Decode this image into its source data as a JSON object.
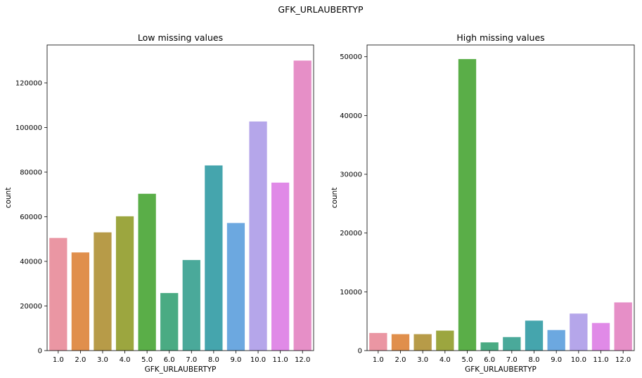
{
  "figure": {
    "suptitle": "GFK_URLAUBERTYP"
  },
  "chart_data": [
    {
      "type": "bar",
      "title": "Low missing values",
      "xlabel": "GFK_URLAUBERTYP",
      "ylabel": "count",
      "ylim": [
        0,
        137000
      ],
      "yticks": [
        0,
        20000,
        40000,
        60000,
        80000,
        100000,
        120000
      ],
      "categories": [
        "1.0",
        "2.0",
        "3.0",
        "4.0",
        "5.0",
        "6.0",
        "7.0",
        "8.0",
        "9.0",
        "10.0",
        "11.0",
        "12.0"
      ],
      "values": [
        50500,
        44000,
        53000,
        60200,
        70300,
        25800,
        40600,
        83000,
        57200,
        102700,
        75300,
        130000
      ],
      "colors": [
        "#ea96a3",
        "#e08f4c",
        "#b79b48",
        "#9ca63f",
        "#5aae48",
        "#4aab83",
        "#4aa99a",
        "#45a5ad",
        "#6ca8e0",
        "#b5a6ea",
        "#e08ae7",
        "#e68fc7"
      ]
    },
    {
      "type": "bar",
      "title": "High missing values",
      "xlabel": "GFK_URLAUBERTYP",
      "ylabel": "count",
      "ylim": [
        0,
        52000
      ],
      "yticks": [
        0,
        10000,
        20000,
        30000,
        40000,
        50000
      ],
      "categories": [
        "1.0",
        "2.0",
        "3.0",
        "4.0",
        "5.0",
        "6.0",
        "7.0",
        "8.0",
        "9.0",
        "10.0",
        "11.0",
        "12.0"
      ],
      "values": [
        3000,
        2800,
        2800,
        3400,
        49600,
        1400,
        2300,
        5100,
        3500,
        6300,
        4700,
        8200
      ],
      "colors": [
        "#ea96a3",
        "#e08f4c",
        "#b79b48",
        "#9ca63f",
        "#5aae48",
        "#4aab83",
        "#4aa99a",
        "#45a5ad",
        "#6ca8e0",
        "#b5a6ea",
        "#e08ae7",
        "#e68fc7"
      ]
    }
  ]
}
